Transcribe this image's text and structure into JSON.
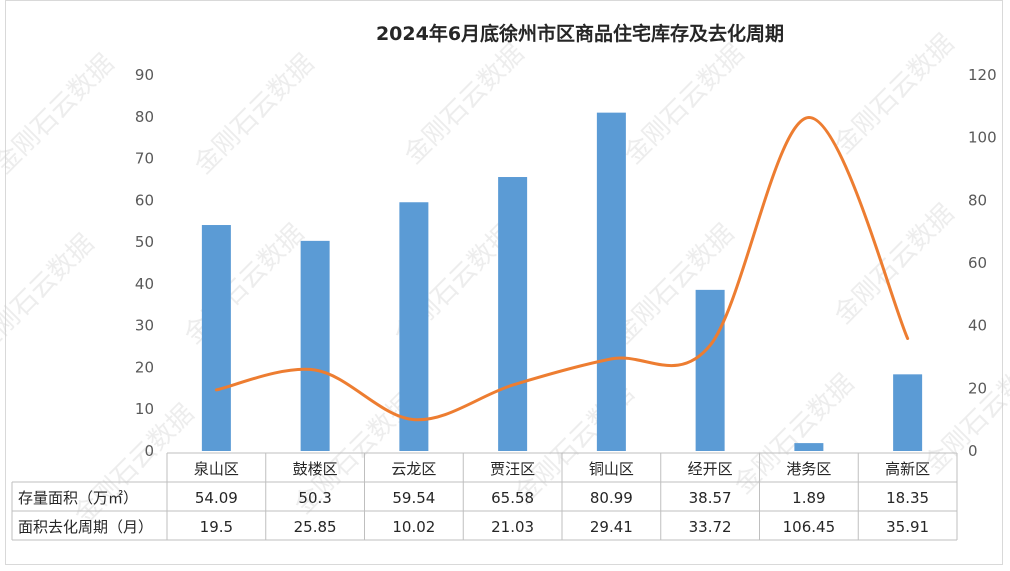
{
  "chart_data": {
    "type": "bar",
    "title": "2024年6月底徐州市区商品住宅库存及去化周期",
    "categories": [
      "泉山区",
      "鼓楼区",
      "云龙区",
      "贾汪区",
      "铜山区",
      "经开区",
      "港务区",
      "高新区"
    ],
    "series": [
      {
        "name": "存量面积（万㎡）",
        "type": "bar",
        "axis": "left",
        "color": "#5b9bd5",
        "values": [
          54.09,
          50.3,
          59.54,
          65.58,
          80.99,
          38.57,
          1.89,
          18.35
        ],
        "display": [
          "54.09",
          "50.3",
          "59.54",
          "65.58",
          "80.99",
          "38.57",
          "1.89",
          "18.35"
        ]
      },
      {
        "name": "面积去化周期（月）",
        "type": "line",
        "axis": "right",
        "color": "#ed7d31",
        "values": [
          19.5,
          25.85,
          10.02,
          21.03,
          29.41,
          33.72,
          106.45,
          35.91
        ],
        "display": [
          "19.5",
          "25.85",
          "10.02",
          "21.03",
          "29.41",
          "33.72",
          "106.45",
          "35.91"
        ]
      }
    ],
    "y_left": {
      "ylim": [
        0,
        90
      ],
      "ticks": [
        "0",
        "10",
        "20",
        "30",
        "40",
        "50",
        "60",
        "70",
        "80",
        "90"
      ]
    },
    "y_right": {
      "ylim": [
        0,
        120
      ],
      "ticks": [
        "0",
        "20",
        "40",
        "60",
        "80",
        "100",
        "120"
      ]
    },
    "grid": false,
    "legend": "data-table-below"
  },
  "watermark": "金刚石云数据"
}
